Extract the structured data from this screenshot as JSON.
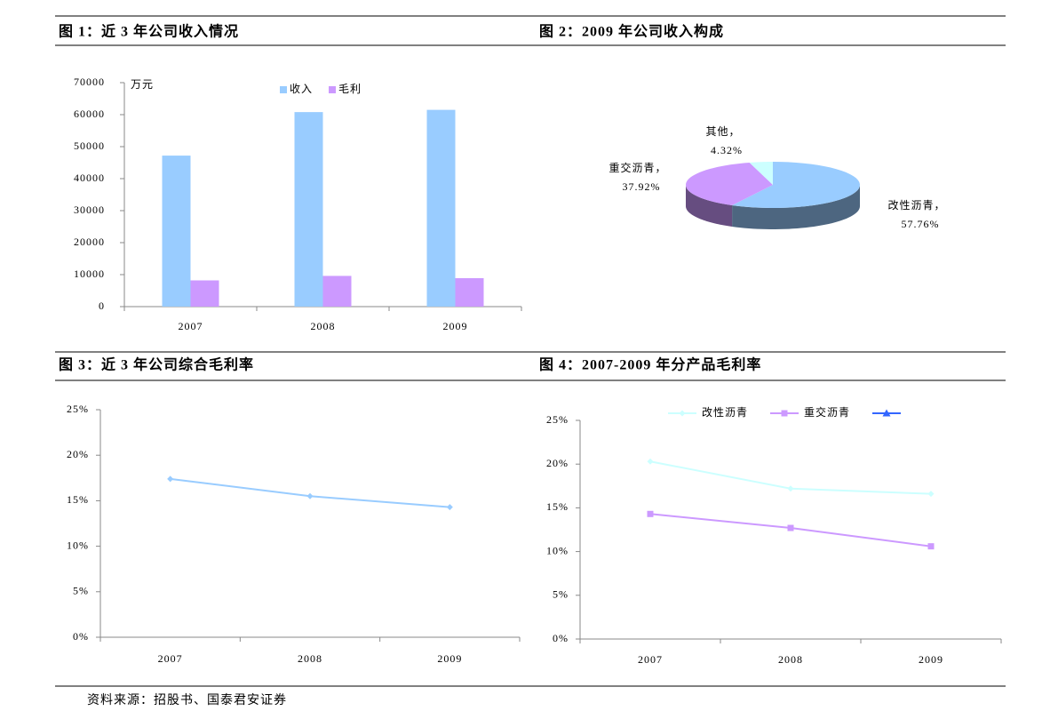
{
  "chart_data": [
    {
      "type": "bar",
      "title": "图 1：近 3 年公司收入情况",
      "y_label": "万元",
      "categories": [
        "2007",
        "2008",
        "2009"
      ],
      "series": [
        {
          "name": "收入",
          "color": "#99ccff",
          "values": [
            47200,
            60800,
            61500
          ]
        },
        {
          "name": "毛利",
          "color": "#cc99ff",
          "values": [
            8200,
            9600,
            8900
          ]
        }
      ],
      "ylim": [
        0,
        70000
      ],
      "yticks": [
        0,
        10000,
        20000,
        30000,
        40000,
        50000,
        60000,
        70000
      ],
      "legend": "top"
    },
    {
      "type": "pie",
      "title": "图 2：2009 年公司收入构成",
      "categories": [
        "改性沥青，",
        "重交沥青，",
        "其他，"
      ],
      "values": [
        57.76,
        37.92,
        4.32
      ],
      "value_labels": [
        "57.76%",
        "37.92%",
        "4.32%"
      ],
      "colors": [
        "#99ccff",
        "#cc99ff",
        "#ccffff"
      ]
    },
    {
      "type": "line",
      "title": "图 3：近 3 年公司综合毛利率",
      "categories": [
        "2007",
        "2008",
        "2009"
      ],
      "values": [
        17.4,
        15.5,
        14.3
      ],
      "color": "#99ccff",
      "marker": "diamond",
      "ylim": [
        0,
        25
      ],
      "yticks": [
        {
          "value": 0,
          "label": "0%"
        },
        {
          "value": 5,
          "label": "5%"
        },
        {
          "value": 10,
          "label": "10%"
        },
        {
          "value": 15,
          "label": "15%"
        },
        {
          "value": 20,
          "label": "20%"
        },
        {
          "value": 25,
          "label": "25%"
        }
      ]
    },
    {
      "type": "line",
      "title": "图 4：2007-2009 年分产品毛利率",
      "categories": [
        "2007",
        "2008",
        "2009"
      ],
      "series": [
        {
          "name": "改性沥青",
          "color": "#ccffff",
          "marker": "diamond",
          "values": [
            20.3,
            17.2,
            16.6
          ]
        },
        {
          "name": "重交沥青",
          "color": "#cc99ff",
          "marker": "square",
          "values": [
            14.3,
            12.7,
            10.6
          ]
        },
        {
          "name": null,
          "color": "#3366ff",
          "marker": "triangle",
          "values": [
            null,
            null,
            null
          ]
        }
      ],
      "ylim": [
        0,
        25
      ],
      "yticks": [
        {
          "value": 0,
          "label": "0%"
        },
        {
          "value": 5,
          "label": "5%"
        },
        {
          "value": 10,
          "label": "10%"
        },
        {
          "value": 15,
          "label": "15%"
        },
        {
          "value": 20,
          "label": "20%"
        },
        {
          "value": 25,
          "label": "25%"
        }
      ],
      "legend": "top"
    }
  ],
  "source": "资料来源：招股书、国泰君安证券"
}
